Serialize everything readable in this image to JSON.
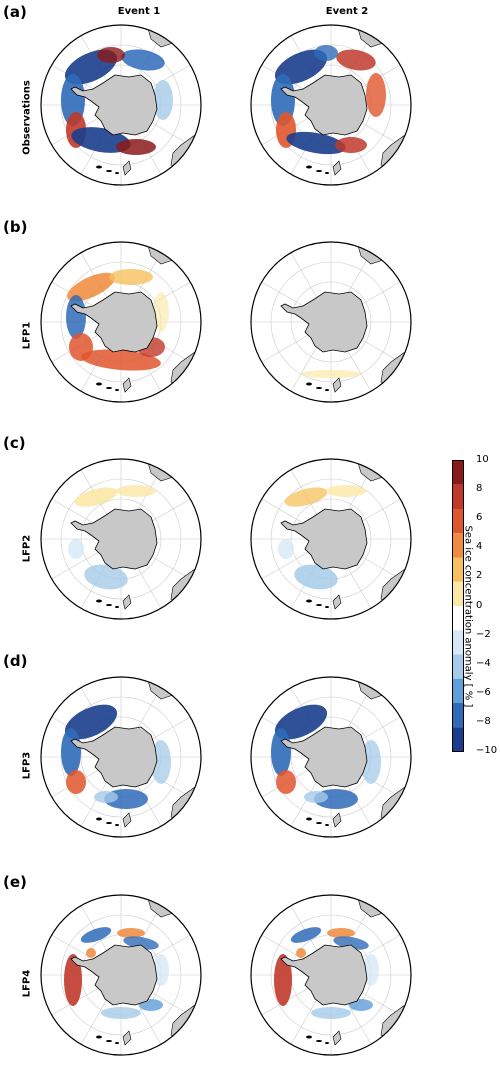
{
  "columns": [
    "Event 1",
    "Event 2"
  ],
  "panels": [
    {
      "letter": "(a)",
      "row": "Observations"
    },
    {
      "letter": "(b)",
      "row": "LFP1"
    },
    {
      "letter": "(c)",
      "row": "LFP2"
    },
    {
      "letter": "(d)",
      "row": "LFP3"
    },
    {
      "letter": "(e)",
      "row": "LFP4"
    }
  ],
  "colorbar": {
    "label": "Sea ice concentration anomaly [ % ]",
    "ticks": [
      "10",
      "8",
      "6",
      "4",
      "2",
      "0",
      "−2",
      "−4",
      "−6",
      "−8",
      "−10"
    ],
    "colors": [
      "#8b1a1a",
      "#c0392b",
      "#e0562e",
      "#f08a3c",
      "#f6c15c",
      "#fbe8a6",
      "#ffffff",
      "#d6e8f5",
      "#a6cbea",
      "#5f9ed8",
      "#2f6bb8",
      "#1a3e8c"
    ]
  }
}
